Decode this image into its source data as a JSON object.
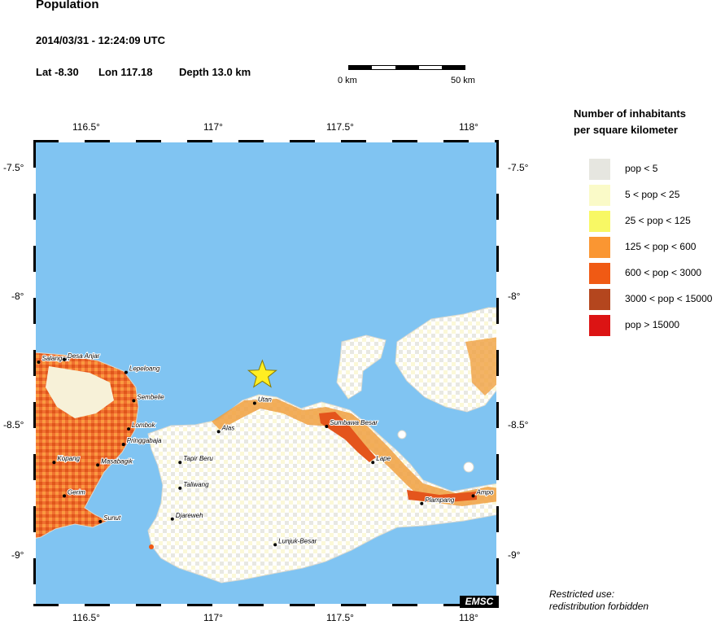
{
  "header": {
    "title": "Population",
    "datetime": "2014/03/31 - 12:24:09 UTC",
    "lat": "Lat -8.30",
    "lon": "Lon 117.18",
    "depth": "Depth  13.0 km"
  },
  "scale_bar": {
    "start": "0 km",
    "end": "50 km"
  },
  "axes": {
    "lon_ticks": [
      "116.5°",
      "117°",
      "117.5°",
      "118°"
    ],
    "lat_ticks": [
      "-7.5°",
      "-8°",
      "-8.5°",
      "-9°"
    ]
  },
  "places": [
    {
      "name": "Salangan",
      "lon": 116.31,
      "lat": -8.25
    },
    {
      "name": "Desa Anjar",
      "lon": 116.41,
      "lat": -8.24
    },
    {
      "name": "Lepeloang",
      "lon": 116.65,
      "lat": -8.29
    },
    {
      "name": "Sembelie",
      "lon": 116.68,
      "lat": -8.4
    },
    {
      "name": "Lombok",
      "lon": 116.66,
      "lat": -8.51
    },
    {
      "name": "Pringgabaja",
      "lon": 116.64,
      "lat": -8.57
    },
    {
      "name": "Kopang",
      "lon": 116.37,
      "lat": -8.64
    },
    {
      "name": "Masabagik",
      "lon": 116.54,
      "lat": -8.65
    },
    {
      "name": "Gerim",
      "lon": 116.41,
      "lat": -8.77
    },
    {
      "name": "Sunut",
      "lon": 116.55,
      "lat": -8.87
    },
    {
      "name": "Utan",
      "lon": 117.15,
      "lat": -8.41
    },
    {
      "name": "Alas",
      "lon": 117.01,
      "lat": -8.52
    },
    {
      "name": "Sumbawa Besar",
      "lon": 117.43,
      "lat": -8.5
    },
    {
      "name": "Tapir Beru",
      "lon": 116.86,
      "lat": -8.64
    },
    {
      "name": "Taliwang",
      "lon": 116.86,
      "lat": -8.74
    },
    {
      "name": "Lape",
      "lon": 117.61,
      "lat": -8.64
    },
    {
      "name": "Plampang",
      "lon": 117.8,
      "lat": -8.8
    },
    {
      "name": "Ampo",
      "lon": 118.0,
      "lat": -8.77
    },
    {
      "name": "Djareweh",
      "lon": 116.83,
      "lat": -8.86
    },
    {
      "name": "Lunjuk-Besar",
      "lon": 117.23,
      "lat": -8.96
    }
  ],
  "epicenter": {
    "lon": 117.18,
    "lat": -8.3
  },
  "legend": {
    "title_line1": "Number of inhabitants",
    "title_line2": "per square kilometer",
    "items": [
      {
        "label": "pop < 5",
        "color": "#e6e6e0"
      },
      {
        "label": "5 < pop < 25",
        "color": "#fafac8"
      },
      {
        "label": "25 < pop < 125",
        "color": "#f8f864"
      },
      {
        "label": "125 < pop < 600",
        "color": "#fa9632"
      },
      {
        "label": "600 < pop < 3000",
        "color": "#f05a14"
      },
      {
        "label": "3000 < pop < 15000",
        "color": "#b4461e"
      },
      {
        "label": "pop > 15000",
        "color": "#dc1414"
      }
    ]
  },
  "footer": {
    "line1": "Restricted use:",
    "line2": "redistribution forbidden"
  },
  "watermark": "EMSC",
  "colors": {
    "sea": "#80c4f2",
    "epicenter": "#ffee22"
  }
}
